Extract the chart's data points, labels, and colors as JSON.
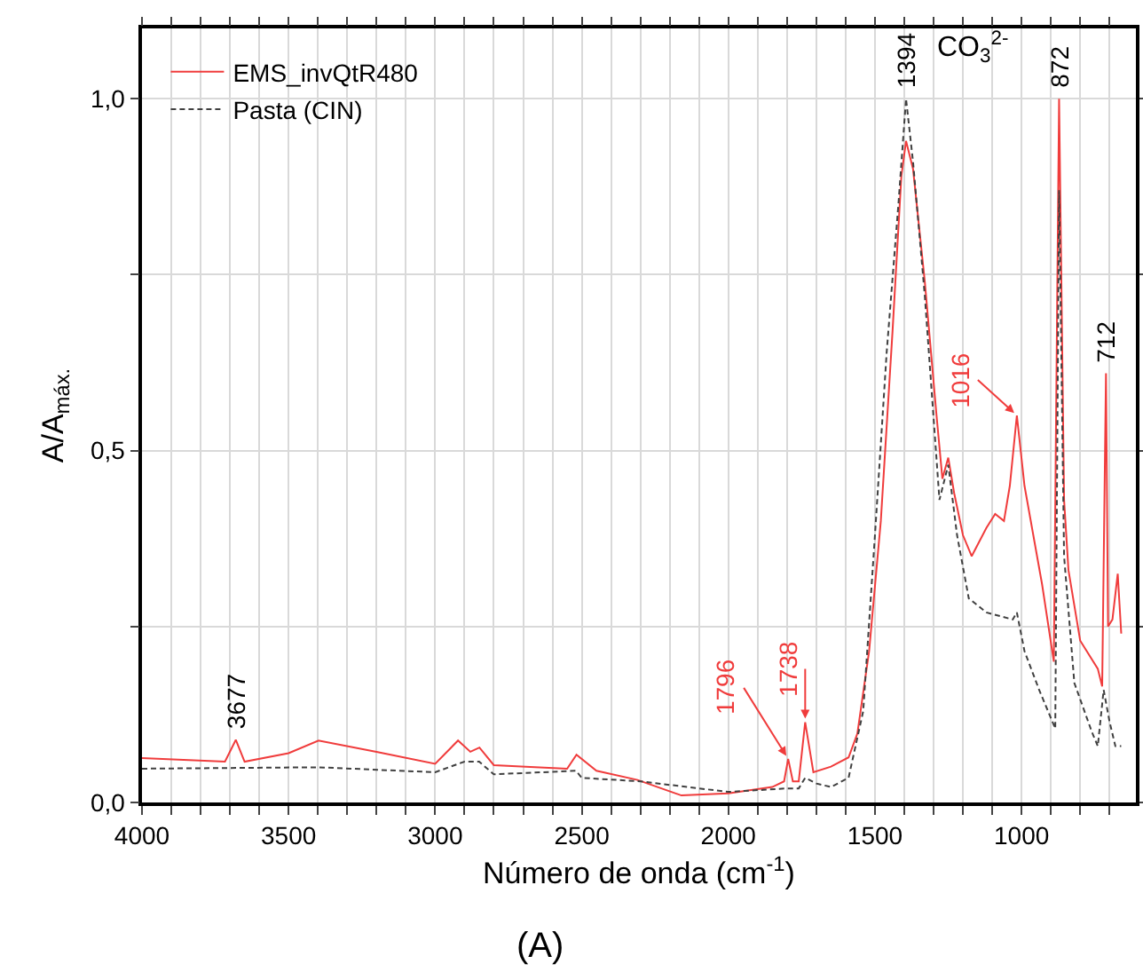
{
  "chart_data": {
    "type": "line",
    "xlabel": "Número de onda (cm$^{-1}$)",
    "ylabel": "A/A$_{máx.}$",
    "xlim": [
      4000,
      610
    ],
    "ylim": [
      0,
      1.1
    ],
    "xticks": [
      4000,
      {
        "value": 3900,
        "label": null
      },
      {
        "value": 3800,
        "label": null
      },
      {
        "value": 3700,
        "label": null
      },
      {
        "value": 3600,
        "label": null
      },
      3500,
      {
        "value": 3400,
        "label": null
      },
      {
        "value": 3300,
        "label": null
      },
      {
        "value": 3200,
        "label": null
      },
      {
        "value": 3100,
        "label": null
      },
      3000,
      {
        "value": 2900,
        "label": null
      },
      {
        "value": 2800,
        "label": null
      },
      {
        "value": 2700,
        "label": null
      },
      {
        "value": 2600,
        "label": null
      },
      2500,
      {
        "value": 2400,
        "label": null
      },
      {
        "value": 2300,
        "label": null
      },
      {
        "value": 2200,
        "label": null
      },
      {
        "value": 2100,
        "label": null
      },
      2000,
      {
        "value": 1900,
        "label": null
      },
      {
        "value": 1800,
        "label": null
      },
      {
        "value": 1700,
        "label": null
      },
      {
        "value": 1600,
        "label": null
      },
      1500,
      {
        "value": 1400,
        "label": null
      },
      {
        "value": 1300,
        "label": null
      },
      {
        "value": 1200,
        "label": null
      },
      {
        "value": 1100,
        "label": null
      },
      1000,
      {
        "value": 900,
        "label": null
      },
      {
        "value": 800,
        "label": null
      },
      {
        "value": 700,
        "label": null
      }
    ],
    "yticks": [
      {
        "value": 0,
        "label": "0,0"
      },
      {
        "value": 0.25,
        "label": null
      },
      {
        "value": 0.5,
        "label": "0,5"
      },
      {
        "value": 0.75,
        "label": null
      },
      {
        "value": 1,
        "label": "1,0"
      }
    ],
    "grid": true,
    "legend": "top left",
    "series": [
      {
        "name": "EMS_invQtR480",
        "color": "#f03c3c",
        "line_style": "solid",
        "x": [
          4000,
          3717,
          3680,
          3650,
          3500,
          3398,
          3200,
          3000,
          2922,
          2880,
          2849,
          2800,
          2550,
          2518,
          2450,
          2310,
          2160,
          2000,
          1850,
          1810,
          1796,
          1780,
          1760,
          1738,
          1710,
          1650,
          1590,
          1560,
          1520,
          1480,
          1440,
          1410,
          1394,
          1370,
          1330,
          1290,
          1270,
          1250,
          1230,
          1200,
          1170,
          1120,
          1090,
          1060,
          1040,
          1016,
          990,
          960,
          930,
          890,
          872,
          855,
          840,
          800,
          740,
          725,
          712,
          705,
          690,
          672,
          660
        ],
        "values": [
          0.063,
          0.058,
          0.089,
          0.058,
          0.07,
          0.088,
          0.072,
          0.055,
          0.088,
          0.072,
          0.078,
          0.053,
          0.048,
          0.068,
          0.045,
          0.032,
          0.01,
          0.013,
          0.022,
          0.03,
          0.062,
          0.03,
          0.03,
          0.114,
          0.043,
          0.051,
          0.064,
          0.098,
          0.215,
          0.4,
          0.67,
          0.89,
          0.94,
          0.9,
          0.74,
          0.55,
          0.46,
          0.49,
          0.44,
          0.38,
          0.35,
          0.39,
          0.41,
          0.4,
          0.45,
          0.55,
          0.45,
          0.38,
          0.31,
          0.2,
          1.0,
          0.43,
          0.33,
          0.23,
          0.19,
          0.165,
          0.61,
          0.25,
          0.26,
          0.325,
          0.24
        ]
      },
      {
        "name": "Pasta (CIN)",
        "color": "#404040",
        "line_style": "dashed",
        "x": [
          4000,
          3400,
          3000,
          2900,
          2850,
          2800,
          2520,
          2500,
          2300,
          2000,
          1800,
          1760,
          1738,
          1700,
          1650,
          1590,
          1540,
          1500,
          1460,
          1420,
          1394,
          1370,
          1330,
          1280,
          1250,
          1220,
          1180,
          1120,
          1030,
          1016,
          990,
          940,
          900,
          885,
          872,
          855,
          820,
          760,
          740,
          720,
          700,
          680,
          660
        ],
        "values": [
          0.048,
          0.05,
          0.043,
          0.058,
          0.058,
          0.04,
          0.045,
          0.035,
          0.03,
          0.015,
          0.02,
          0.02,
          0.035,
          0.027,
          0.022,
          0.035,
          0.13,
          0.38,
          0.64,
          0.85,
          1.0,
          0.91,
          0.72,
          0.43,
          0.48,
          0.38,
          0.29,
          0.27,
          0.26,
          0.27,
          0.215,
          0.16,
          0.12,
          0.105,
          0.87,
          0.35,
          0.17,
          0.1,
          0.08,
          0.16,
          0.115,
          0.08,
          0.08
        ]
      }
    ],
    "annotations": [
      {
        "text": "3677",
        "x": 3677,
        "y": 0.089
      },
      {
        "text": "1394",
        "x": 1394,
        "y": 1.0
      },
      "CO$_{3}$$^{2-}$",
      {
        "text": "872",
        "x": 872,
        "y": 1.0
      },
      {
        "text": "712",
        "x": 712,
        "y": 0.61
      },
      {
        "text": "1796",
        "x": 1796,
        "y": 0.062
      },
      {
        "text": "1738",
        "x": 1738,
        "y": 0.114
      },
      {
        "text": "1016",
        "x": 1016,
        "y": 0.55
      },
      "(A)"
    ]
  }
}
